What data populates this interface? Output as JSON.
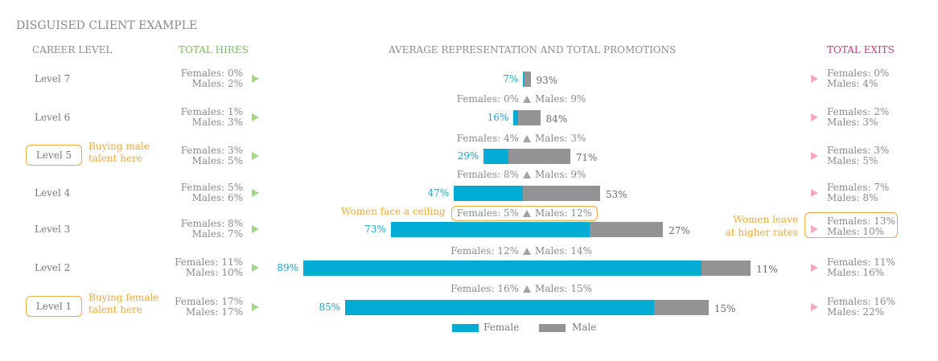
{
  "title": "DISGUISED CLIENT EXAMPLE",
  "headers": {
    "career_level": "CAREER LEVEL",
    "total_hires": "TOTAL HIRES",
    "center": "AVERAGE REPRESENTATION AND TOTAL PROMOTIONS",
    "total_exits": "TOTAL EXITS"
  },
  "colors": {
    "female": "#00acd4",
    "male": "#939395",
    "hires_accent": "#7dbd5d",
    "exits_accent": "#e0307a",
    "callout": "#f0a93f"
  },
  "legend": {
    "female": "Female",
    "male": "Male"
  },
  "chart_data": {
    "type": "bar",
    "orientation": "horizontal",
    "stacked": true,
    "title": "AVERAGE REPRESENTATION AND TOTAL PROMOTIONS",
    "categories": [
      "Level 7",
      "Level 6",
      "Level 5",
      "Level 4",
      "Level 3",
      "Level 2",
      "Level 1"
    ],
    "series": [
      {
        "name": "Female",
        "values": [
          7,
          16,
          29,
          47,
          73,
          89,
          85
        ]
      },
      {
        "name": "Male",
        "values": [
          93,
          84,
          71,
          53,
          27,
          11,
          15
        ]
      }
    ],
    "female_labels": [
      "7%",
      "16%",
      "29%",
      "47%",
      "73%",
      "89%",
      "85%"
    ],
    "male_labels": [
      "93%",
      "84%",
      "71%",
      "53%",
      "27%",
      "11%",
      "15%"
    ],
    "bar_scale_employees": [
      9,
      33,
      107,
      181,
      337,
      554,
      450
    ],
    "promotions": [
      {
        "female": "Females: 0%",
        "male": "Males: 9%"
      },
      {
        "female": "Females: 4%",
        "male": "Males: 3%"
      },
      {
        "female": "Females: 8%",
        "male": "Males: 9%"
      },
      {
        "female": "Females: 5%",
        "male": "Males: 12%"
      },
      {
        "female": "Females: 12%",
        "male": "Males: 14%"
      },
      {
        "female": "Females: 16%",
        "male": "Males: 15%"
      }
    ],
    "legend_placement": "bottom"
  },
  "rows": [
    {
      "level": "Level 7",
      "hires_f": "Females: 0%",
      "hires_m": "Males: 2%",
      "exits_f": "Females: 0%",
      "exits_m": "Males: 4%"
    },
    {
      "level": "Level 6",
      "hires_f": "Females: 1%",
      "hires_m": "Males: 3%",
      "exits_f": "Females: 2%",
      "exits_m": "Males: 3%"
    },
    {
      "level": "Level 5",
      "hires_f": "Females: 3%",
      "hires_m": "Males: 5%",
      "exits_f": "Females: 3%",
      "exits_m": "Males: 5%",
      "note": "Buying male talent here"
    },
    {
      "level": "Level 4",
      "hires_f": "Females: 5%",
      "hires_m": "Males: 6%",
      "exits_f": "Females: 7%",
      "exits_m": "Males: 8%"
    },
    {
      "level": "Level 3",
      "hires_f": "Females: 8%",
      "hires_m": "Males: 7%",
      "exits_f": "Females: 13%",
      "exits_m": "Males: 10%",
      "exit_note": "Women leave at higher rates"
    },
    {
      "level": "Level 2",
      "hires_f": "Females: 11%",
      "hires_m": "Males: 10%",
      "exits_f": "Females: 11%",
      "exits_m": "Males: 16%"
    },
    {
      "level": "Level 1",
      "hires_f": "Females: 17%",
      "hires_m": "Males: 17%",
      "exits_f": "Females: 16%",
      "exits_m": "Males: 22%",
      "note": "Buying female talent here"
    }
  ],
  "promotion_note": "Women face a ceiling"
}
